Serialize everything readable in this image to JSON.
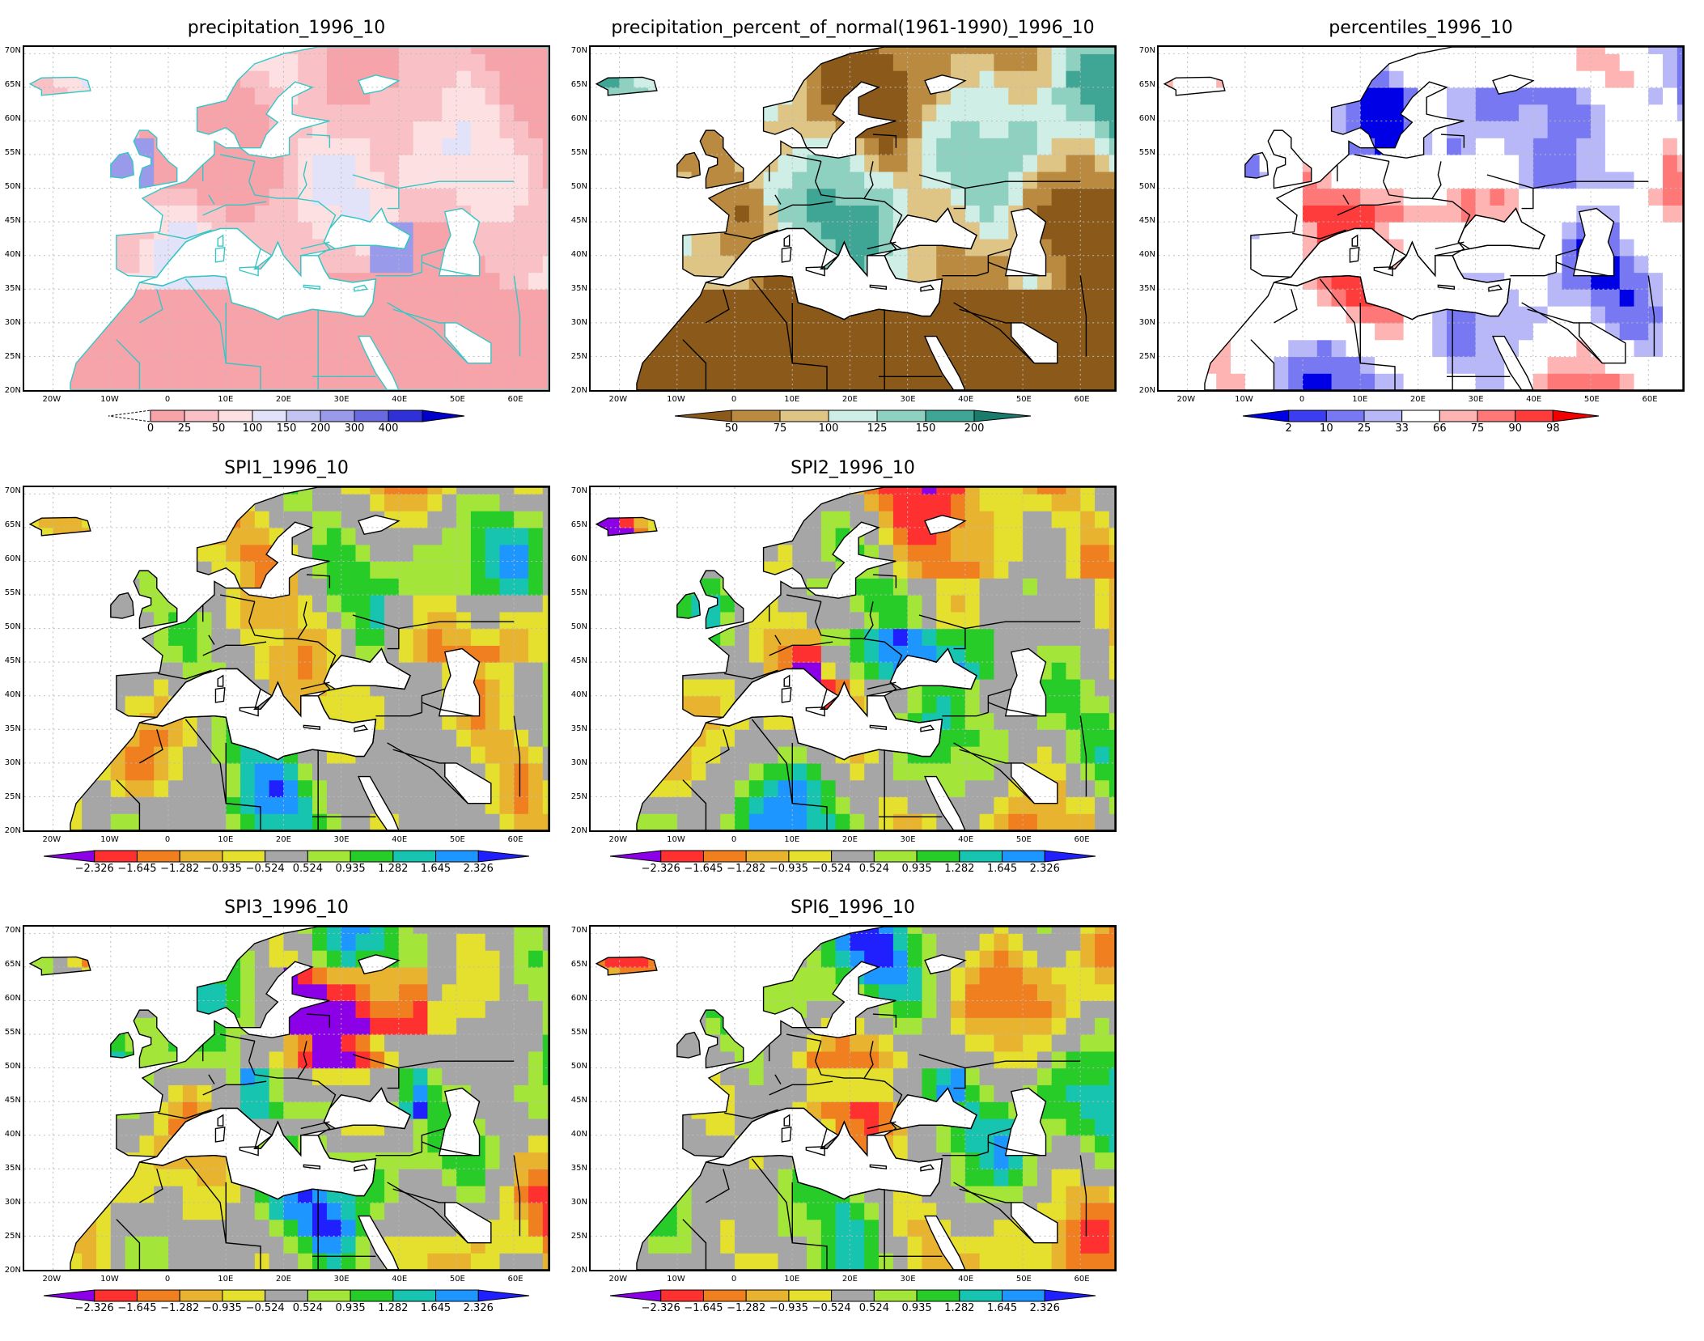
{
  "lat_labels": [
    "70N",
    "65N",
    "60N",
    "55N",
    "50N",
    "45N",
    "40N",
    "35N",
    "30N",
    "25N",
    "20N"
  ],
  "lon_labels": [
    "20W",
    "10W",
    "0",
    "10E",
    "20E",
    "30E",
    "40E",
    "50E",
    "60E"
  ],
  "panels": [
    {
      "id": "precip",
      "title": "precipitation_1996_10",
      "coastline_color": "#35c6c6",
      "colors": [
        "#ffffff",
        "#f6a3aa",
        "#f9c1c6",
        "#fce0e2",
        "#e2e2f8",
        "#c4c4f2",
        "#9a9aea",
        "#6a6ae0",
        "#3030d8",
        "#0000cc"
      ],
      "cbar_labels": [
        "0",
        "25",
        "50",
        "100",
        "150",
        "200",
        "300",
        "400"
      ],
      "cbar_left_tri": "dashed",
      "field": "precip"
    },
    {
      "id": "percent",
      "title": "precipitation_percent_of_normal(1961-1990)_1996_10",
      "coastline_color": "#000000",
      "colors": [
        "#8b5a1a",
        "#b98a3f",
        "#dfc585",
        "#cfeee6",
        "#8fd1c1",
        "#3fa594",
        "#1a7a6c"
      ],
      "cbar_labels": [
        "50",
        "75",
        "100",
        "125",
        "150",
        "200"
      ],
      "field": "percent"
    },
    {
      "id": "percentiles",
      "title": "percentiles_1996_10",
      "coastline_color": "#000000",
      "colors": [
        "#0000e6",
        "#3c3cf0",
        "#7878f2",
        "#b8b8f8",
        "#ffffff",
        "#ffb4b4",
        "#ff7878",
        "#ff3c3c",
        "#f00000"
      ],
      "cbar_labels": [
        "2",
        "10",
        "25",
        "33",
        "66",
        "75",
        "90",
        "98"
      ],
      "field": "percentiles"
    },
    {
      "id": "spi1",
      "title": "SPI1_1996_10",
      "coastline_color": "#000000",
      "colors": [
        "#8b00e6",
        "#ff3030",
        "#f07f20",
        "#e8b430",
        "#e5e02e",
        "#a6a6a6",
        "#a3e639",
        "#28cc28",
        "#16c4b0",
        "#1e96ff",
        "#2020ff"
      ],
      "cbar_labels": [
        "-2.326",
        "-1.645",
        "-1.282",
        "-0.935",
        "-0.524",
        "0.524",
        "0.935",
        "1.282",
        "1.645",
        "2.326"
      ],
      "field": "spi1"
    },
    {
      "id": "spi2",
      "title": "SPI2_1996_10",
      "coastline_color": "#000000",
      "colors": [
        "#8b00e6",
        "#ff3030",
        "#f07f20",
        "#e8b430",
        "#e5e02e",
        "#a6a6a6",
        "#a3e639",
        "#28cc28",
        "#16c4b0",
        "#1e96ff",
        "#2020ff"
      ],
      "cbar_labels": [
        "-2.326",
        "-1.645",
        "-1.282",
        "-0.935",
        "-0.524",
        "0.524",
        "0.935",
        "1.282",
        "1.645",
        "2.326"
      ],
      "field": "spi2"
    },
    {
      "id": "spi3",
      "title": "SPI3_1996_10",
      "coastline_color": "#000000",
      "colors": [
        "#8b00e6",
        "#ff3030",
        "#f07f20",
        "#e8b430",
        "#e5e02e",
        "#a6a6a6",
        "#a3e639",
        "#28cc28",
        "#16c4b0",
        "#1e96ff",
        "#2020ff"
      ],
      "cbar_labels": [
        "-2.326",
        "-1.645",
        "-1.282",
        "-0.935",
        "-0.524",
        "0.524",
        "0.935",
        "1.282",
        "1.645",
        "2.326"
      ],
      "field": "spi3"
    },
    {
      "id": "spi6",
      "title": "SPI6_1996_10",
      "coastline_color": "#000000",
      "colors": [
        "#8b00e6",
        "#ff3030",
        "#f07f20",
        "#e8b430",
        "#e5e02e",
        "#a6a6a6",
        "#a3e639",
        "#28cc28",
        "#16c4b0",
        "#1e96ff",
        "#2020ff"
      ],
      "cbar_labels": [
        "-2.326",
        "-1.645",
        "-1.282",
        "-0.935",
        "-0.524",
        "0.524",
        "0.935",
        "1.282",
        "1.645",
        "2.326"
      ],
      "field": "spi6"
    }
  ]
}
